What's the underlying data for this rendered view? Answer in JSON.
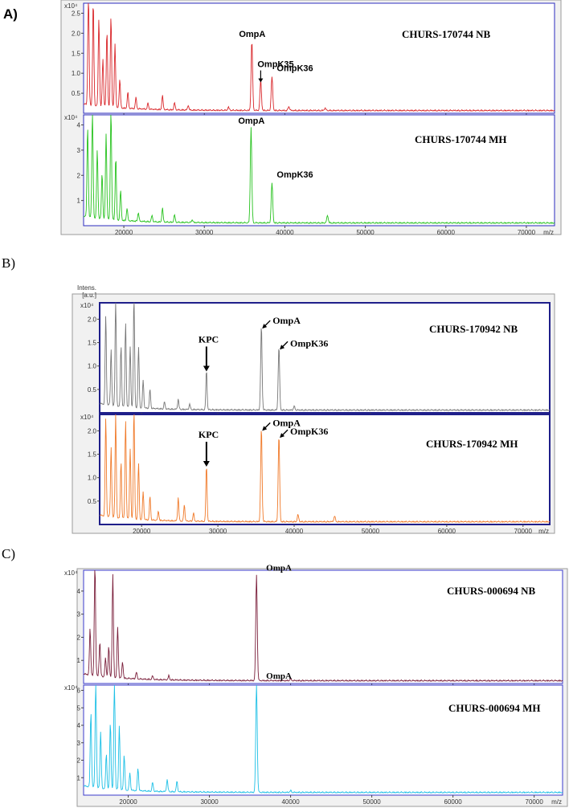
{
  "panels": [
    {
      "label": "A)",
      "style": "sans"
    },
    {
      "label": "B)",
      "style": "serif"
    },
    {
      "label": "C)",
      "style": "serif"
    }
  ],
  "chart_data": [
    {
      "type": "line",
      "panel": "A)",
      "title": "CHURS-170744 NB",
      "x_unit": "m/z",
      "y_exponent": "x10⁴",
      "xlim": [
        15000,
        73500
      ],
      "ylim": [
        0,
        2.75
      ],
      "x_ticks": [
        20000,
        30000,
        40000,
        50000,
        60000,
        70000
      ],
      "y_ticks": [
        0.5,
        1.0,
        1.5,
        2.0,
        2.5
      ],
      "color": "#d9262a",
      "annotations": [
        {
          "text": "OmpA",
          "x": 35900
        },
        {
          "text": "OmpK35",
          "x": 37000
        },
        {
          "text": "OmpK36",
          "x": 38400
        }
      ],
      "peaks": [
        {
          "x": 15600,
          "y": 2.9
        },
        {
          "x": 16200,
          "y": 2.6
        },
        {
          "x": 16900,
          "y": 2.2
        },
        {
          "x": 17400,
          "y": 1.2
        },
        {
          "x": 17900,
          "y": 1.9
        },
        {
          "x": 18400,
          "y": 2.3
        },
        {
          "x": 18900,
          "y": 1.6
        },
        {
          "x": 19500,
          "y": 0.7
        },
        {
          "x": 20500,
          "y": 0.4
        },
        {
          "x": 21500,
          "y": 0.28
        },
        {
          "x": 23000,
          "y": 0.15
        },
        {
          "x": 24800,
          "y": 0.35
        },
        {
          "x": 26300,
          "y": 0.18
        },
        {
          "x": 28000,
          "y": 0.12
        },
        {
          "x": 33000,
          "y": 0.08
        },
        {
          "x": 35900,
          "y": 1.75
        },
        {
          "x": 37000,
          "y": 0.75
        },
        {
          "x": 38400,
          "y": 0.85
        },
        {
          "x": 40500,
          "y": 0.1
        },
        {
          "x": 45000,
          "y": 0.06
        }
      ]
    },
    {
      "type": "line",
      "panel": "A)",
      "title": "CHURS-170744 MH",
      "x_unit": "m/z",
      "y_exponent": "x10⁴",
      "xlim": [
        15000,
        73500
      ],
      "ylim": [
        0,
        4.4
      ],
      "x_ticks": [
        20000,
        30000,
        40000,
        50000,
        60000,
        70000
      ],
      "x_tick_labels": [
        "20000",
        "30000",
        "40000",
        "50000",
        "60000",
        "70000"
      ],
      "y_ticks": [
        1,
        2,
        3,
        4
      ],
      "color": "#27c21e",
      "annotations": [
        {
          "text": "OmpA",
          "x": 35800
        },
        {
          "text": "OmpK36",
          "x": 38400
        }
      ],
      "peaks": [
        {
          "x": 15500,
          "y": 3.6
        },
        {
          "x": 16100,
          "y": 4.4
        },
        {
          "x": 16700,
          "y": 2.7
        },
        {
          "x": 17300,
          "y": 1.8
        },
        {
          "x": 17800,
          "y": 3.4
        },
        {
          "x": 18400,
          "y": 4.4
        },
        {
          "x": 19000,
          "y": 2.5
        },
        {
          "x": 19600,
          "y": 1.2
        },
        {
          "x": 20400,
          "y": 0.5
        },
        {
          "x": 21800,
          "y": 0.35
        },
        {
          "x": 23500,
          "y": 0.25
        },
        {
          "x": 24800,
          "y": 0.55
        },
        {
          "x": 26300,
          "y": 0.3
        },
        {
          "x": 28500,
          "y": 0.12
        },
        {
          "x": 35800,
          "y": 3.8
        },
        {
          "x": 38400,
          "y": 1.6
        },
        {
          "x": 45300,
          "y": 0.3
        }
      ]
    },
    {
      "type": "line",
      "panel": "B)",
      "title": "CHURS-170942 NB",
      "y_title": "Intens.\n[a.u.]",
      "x_unit": "m/z",
      "y_exponent": "x10⁴",
      "xlim": [
        14500,
        73500
      ],
      "ylim": [
        0,
        2.35
      ],
      "x_ticks": [
        20000,
        30000,
        40000,
        50000,
        60000,
        70000
      ],
      "y_ticks": [
        0.5,
        1.0,
        1.5,
        2.0
      ],
      "color": "#777777",
      "annotations": [
        {
          "text": "KPC",
          "x": 28500
        },
        {
          "text": "OmpA",
          "x": 35700
        },
        {
          "text": "OmpK36",
          "x": 38000
        }
      ],
      "peaks": [
        {
          "x": 15300,
          "y": 1.9
        },
        {
          "x": 16000,
          "y": 1.2
        },
        {
          "x": 16600,
          "y": 2.4
        },
        {
          "x": 17300,
          "y": 1.3
        },
        {
          "x": 17900,
          "y": 1.8
        },
        {
          "x": 18500,
          "y": 1.3
        },
        {
          "x": 19000,
          "y": 2.4
        },
        {
          "x": 19600,
          "y": 1.3
        },
        {
          "x": 20200,
          "y": 0.6
        },
        {
          "x": 21100,
          "y": 0.4
        },
        {
          "x": 23000,
          "y": 0.15
        },
        {
          "x": 24800,
          "y": 0.22
        },
        {
          "x": 26300,
          "y": 0.12
        },
        {
          "x": 28500,
          "y": 0.85
        },
        {
          "x": 35700,
          "y": 1.8
        },
        {
          "x": 38000,
          "y": 1.35
        },
        {
          "x": 40000,
          "y": 0.08
        }
      ]
    },
    {
      "type": "line",
      "panel": "B)",
      "title": "CHURS-170942 MH",
      "x_unit": "m/z",
      "y_exponent": "x10⁴",
      "xlim": [
        14500,
        73500
      ],
      "ylim": [
        0,
        2.35
      ],
      "x_ticks": [
        20000,
        30000,
        40000,
        50000,
        60000,
        70000
      ],
      "x_tick_labels": [
        "20000",
        "30000",
        "40000",
        "50000",
        "60000",
        "70000"
      ],
      "y_ticks": [
        0.5,
        1.0,
        1.5,
        2.0
      ],
      "color": "#f07a2a",
      "annotations": [
        {
          "text": "KPC",
          "x": 28500
        },
        {
          "text": "OmpA",
          "x": 35700
        },
        {
          "text": "OmpK36",
          "x": 38000
        }
      ],
      "peaks": [
        {
          "x": 15300,
          "y": 2.1
        },
        {
          "x": 16000,
          "y": 1.5
        },
        {
          "x": 16600,
          "y": 2.2
        },
        {
          "x": 17300,
          "y": 1.2
        },
        {
          "x": 17900,
          "y": 2.1
        },
        {
          "x": 18500,
          "y": 1.5
        },
        {
          "x": 19000,
          "y": 2.35
        },
        {
          "x": 19600,
          "y": 1.2
        },
        {
          "x": 20200,
          "y": 0.6
        },
        {
          "x": 21100,
          "y": 0.5
        },
        {
          "x": 22200,
          "y": 0.2
        },
        {
          "x": 24800,
          "y": 0.5
        },
        {
          "x": 25600,
          "y": 0.35
        },
        {
          "x": 26800,
          "y": 0.18
        },
        {
          "x": 28500,
          "y": 1.2
        },
        {
          "x": 35700,
          "y": 2.0
        },
        {
          "x": 38000,
          "y": 1.85
        },
        {
          "x": 40500,
          "y": 0.15
        },
        {
          "x": 45300,
          "y": 0.12
        }
      ]
    },
    {
      "type": "line",
      "panel": "C)",
      "title": "CHURS-000694 NB",
      "x_unit": "m/z",
      "y_exponent": "x10⁴",
      "xlim": [
        14500,
        73500
      ],
      "ylim": [
        0,
        4.9
      ],
      "x_ticks": [
        20000,
        30000,
        40000,
        50000,
        60000,
        70000
      ],
      "y_ticks": [
        1,
        2,
        3,
        4
      ],
      "color": "#7a1e3a",
      "annotations": [
        {
          "text": "OmpA",
          "x": 35800
        }
      ],
      "peaks": [
        {
          "x": 15300,
          "y": 2.0
        },
        {
          "x": 15900,
          "y": 4.9
        },
        {
          "x": 16500,
          "y": 1.5
        },
        {
          "x": 17200,
          "y": 0.8
        },
        {
          "x": 17600,
          "y": 1.3
        },
        {
          "x": 18100,
          "y": 4.5
        },
        {
          "x": 18700,
          "y": 2.2
        },
        {
          "x": 19300,
          "y": 0.7
        },
        {
          "x": 21000,
          "y": 0.3
        },
        {
          "x": 23000,
          "y": 0.15
        },
        {
          "x": 25000,
          "y": 0.18
        },
        {
          "x": 35800,
          "y": 4.6
        },
        {
          "x": 40000,
          "y": 0.08
        }
      ]
    },
    {
      "type": "line",
      "panel": "C)",
      "title": "CHURS-000694 MH",
      "x_unit": "m/z",
      "y_exponent": "x10⁴",
      "xlim": [
        14500,
        73500
      ],
      "ylim": [
        0,
        6.3
      ],
      "x_ticks": [
        20000,
        30000,
        40000,
        50000,
        60000,
        70000
      ],
      "x_tick_labels": [
        "20000",
        "30000",
        "40000",
        "50000",
        "60000",
        "70000"
      ],
      "y_ticks": [
        1,
        2,
        3,
        4,
        5,
        6
      ],
      "color": "#1ec0e6",
      "annotations": [
        {
          "text": "OmpA",
          "x": 35800
        }
      ],
      "peaks": [
        {
          "x": 15400,
          "y": 4.3
        },
        {
          "x": 16000,
          "y": 6.3
        },
        {
          "x": 16600,
          "y": 3.2
        },
        {
          "x": 17300,
          "y": 2.0
        },
        {
          "x": 17800,
          "y": 3.8
        },
        {
          "x": 18300,
          "y": 6.3
        },
        {
          "x": 18900,
          "y": 3.7
        },
        {
          "x": 19500,
          "y": 2.0
        },
        {
          "x": 20200,
          "y": 1.0
        },
        {
          "x": 21200,
          "y": 1.3
        },
        {
          "x": 23000,
          "y": 0.5
        },
        {
          "x": 24800,
          "y": 0.7
        },
        {
          "x": 26000,
          "y": 0.6
        },
        {
          "x": 35800,
          "y": 6.3
        },
        {
          "x": 40000,
          "y": 0.1
        }
      ]
    }
  ]
}
